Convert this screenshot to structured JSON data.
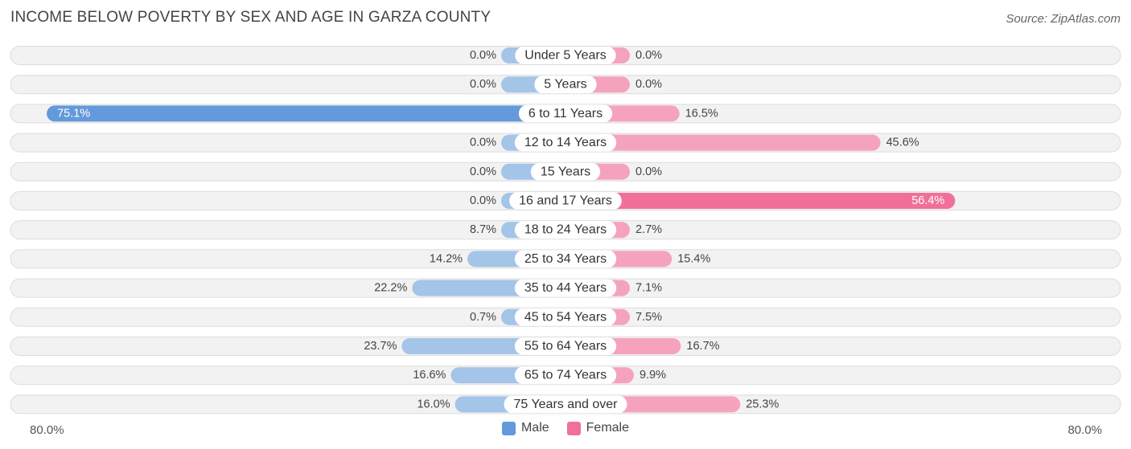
{
  "title": "INCOME BELOW POVERTY BY SEX AND AGE IN GARZA COUNTY",
  "source": "Source: ZipAtlas.com",
  "axis": {
    "left_label": "80.0%",
    "right_label": "80.0%"
  },
  "legend": {
    "male_label": "Male",
    "female_label": "Female"
  },
  "colors": {
    "male": "#a4c4e8",
    "male_strong": "#6499db",
    "female": "#f5a3bd",
    "female_strong": "#f07099",
    "row_bg": "#f0f0f0"
  },
  "chart_data": {
    "type": "bar",
    "orientation": "horizontal-diverging",
    "xlim": [
      -80,
      80
    ],
    "categories": [
      "Under 5 Years",
      "5 Years",
      "6 to 11 Years",
      "12 to 14 Years",
      "15 Years",
      "16 and 17 Years",
      "18 to 24 Years",
      "25 to 34 Years",
      "35 to 44 Years",
      "45 to 54 Years",
      "55 to 64 Years",
      "65 to 74 Years",
      "75 Years and over"
    ],
    "series": [
      {
        "name": "Male",
        "values": [
          0.0,
          0.0,
          75.1,
          0.0,
          0.0,
          0.0,
          8.7,
          14.2,
          22.2,
          0.7,
          23.7,
          16.6,
          16.0
        ],
        "labels": [
          "0.0%",
          "0.0%",
          "75.1%",
          "0.0%",
          "0.0%",
          "0.0%",
          "8.7%",
          "14.2%",
          "22.2%",
          "0.7%",
          "23.7%",
          "16.6%",
          "16.0%"
        ]
      },
      {
        "name": "Female",
        "values": [
          0.0,
          0.0,
          16.5,
          45.6,
          0.0,
          56.4,
          2.7,
          15.4,
          7.1,
          7.5,
          16.7,
          9.9,
          25.3
        ],
        "labels": [
          "0.0%",
          "0.0%",
          "16.5%",
          "45.6%",
          "0.0%",
          "56.4%",
          "2.7%",
          "15.4%",
          "7.1%",
          "7.5%",
          "16.7%",
          "9.9%",
          "25.3%"
        ]
      }
    ]
  }
}
